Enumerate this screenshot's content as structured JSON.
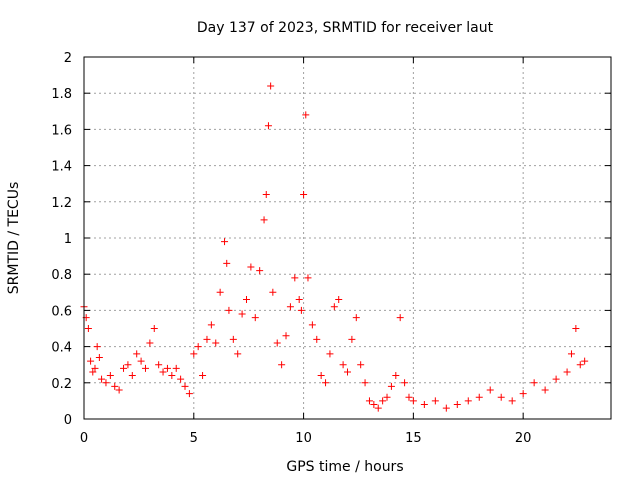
{
  "chart_data": {
    "type": "scatter",
    "title": "Day 137 of 2023, SRMTID for receiver laut",
    "xlabel": "GPS time / hours",
    "ylabel": "SRMTID / TECUs",
    "xlim": [
      0,
      24
    ],
    "ylim": [
      0,
      2
    ],
    "xticks": [
      0,
      5,
      10,
      15,
      20
    ],
    "xtick_labels": [
      "0",
      "5",
      "10",
      "15",
      "20"
    ],
    "yticks": [
      0,
      0.2,
      0.4,
      0.6,
      0.8,
      1,
      1.2,
      1.4,
      1.6,
      1.8,
      2
    ],
    "ytick_labels": [
      "0",
      "0.2",
      "0.4",
      "0.6",
      "0.8",
      "1",
      "1.2",
      "1.4",
      "1.6",
      "1.8",
      "2"
    ],
    "grid": true,
    "marker": "+",
    "color": "#ff0000",
    "series": [
      {
        "name": "SRMTID",
        "x": [
          0.0,
          0.1,
          0.2,
          0.3,
          0.4,
          0.5,
          0.6,
          0.7,
          0.8,
          1.0,
          1.2,
          1.4,
          1.6,
          1.8,
          2.0,
          2.2,
          2.4,
          2.6,
          2.8,
          3.0,
          3.2,
          3.4,
          3.6,
          3.8,
          4.0,
          4.2,
          4.4,
          4.6,
          4.8,
          5.0,
          5.2,
          5.4,
          5.6,
          5.8,
          6.0,
          6.2,
          6.4,
          6.5,
          6.6,
          6.8,
          7.0,
          7.2,
          7.4,
          7.6,
          7.8,
          8.0,
          8.2,
          8.3,
          8.4,
          8.5,
          8.6,
          8.8,
          9.0,
          9.2,
          9.4,
          9.6,
          9.8,
          9.9,
          10.0,
          10.1,
          10.2,
          10.4,
          10.6,
          10.8,
          11.0,
          11.2,
          11.4,
          11.6,
          11.8,
          12.0,
          12.2,
          12.4,
          12.6,
          12.8,
          13.0,
          13.2,
          13.4,
          13.6,
          13.8,
          14.0,
          14.2,
          14.4,
          14.6,
          14.8,
          15.0,
          15.5,
          16.0,
          16.5,
          17.0,
          17.5,
          18.0,
          18.5,
          19.0,
          19.5,
          20.0,
          20.5,
          21.0,
          21.5,
          22.0,
          22.2,
          22.4,
          22.6,
          22.8
        ],
        "y": [
          0.62,
          0.56,
          0.5,
          0.32,
          0.26,
          0.28,
          0.4,
          0.34,
          0.22,
          0.2,
          0.24,
          0.18,
          0.16,
          0.28,
          0.3,
          0.24,
          0.36,
          0.32,
          0.28,
          0.42,
          0.5,
          0.3,
          0.26,
          0.28,
          0.24,
          0.28,
          0.22,
          0.18,
          0.14,
          0.36,
          0.4,
          0.24,
          0.44,
          0.52,
          0.42,
          0.7,
          0.98,
          0.86,
          0.6,
          0.44,
          0.36,
          0.58,
          0.66,
          0.84,
          0.56,
          0.82,
          1.1,
          1.24,
          1.62,
          1.84,
          0.7,
          0.42,
          0.3,
          0.46,
          0.62,
          0.78,
          0.66,
          0.6,
          1.24,
          1.68,
          0.78,
          0.52,
          0.44,
          0.24,
          0.2,
          0.36,
          0.62,
          0.66,
          0.3,
          0.26,
          0.44,
          0.56,
          0.3,
          0.2,
          0.1,
          0.08,
          0.06,
          0.1,
          0.12,
          0.18,
          0.24,
          0.56,
          0.2,
          0.12,
          0.1,
          0.08,
          0.1,
          0.06,
          0.08,
          0.1,
          0.12,
          0.16,
          0.12,
          0.1,
          0.14,
          0.2,
          0.16,
          0.22,
          0.26,
          0.36,
          0.5,
          0.3,
          0.32
        ]
      }
    ]
  }
}
